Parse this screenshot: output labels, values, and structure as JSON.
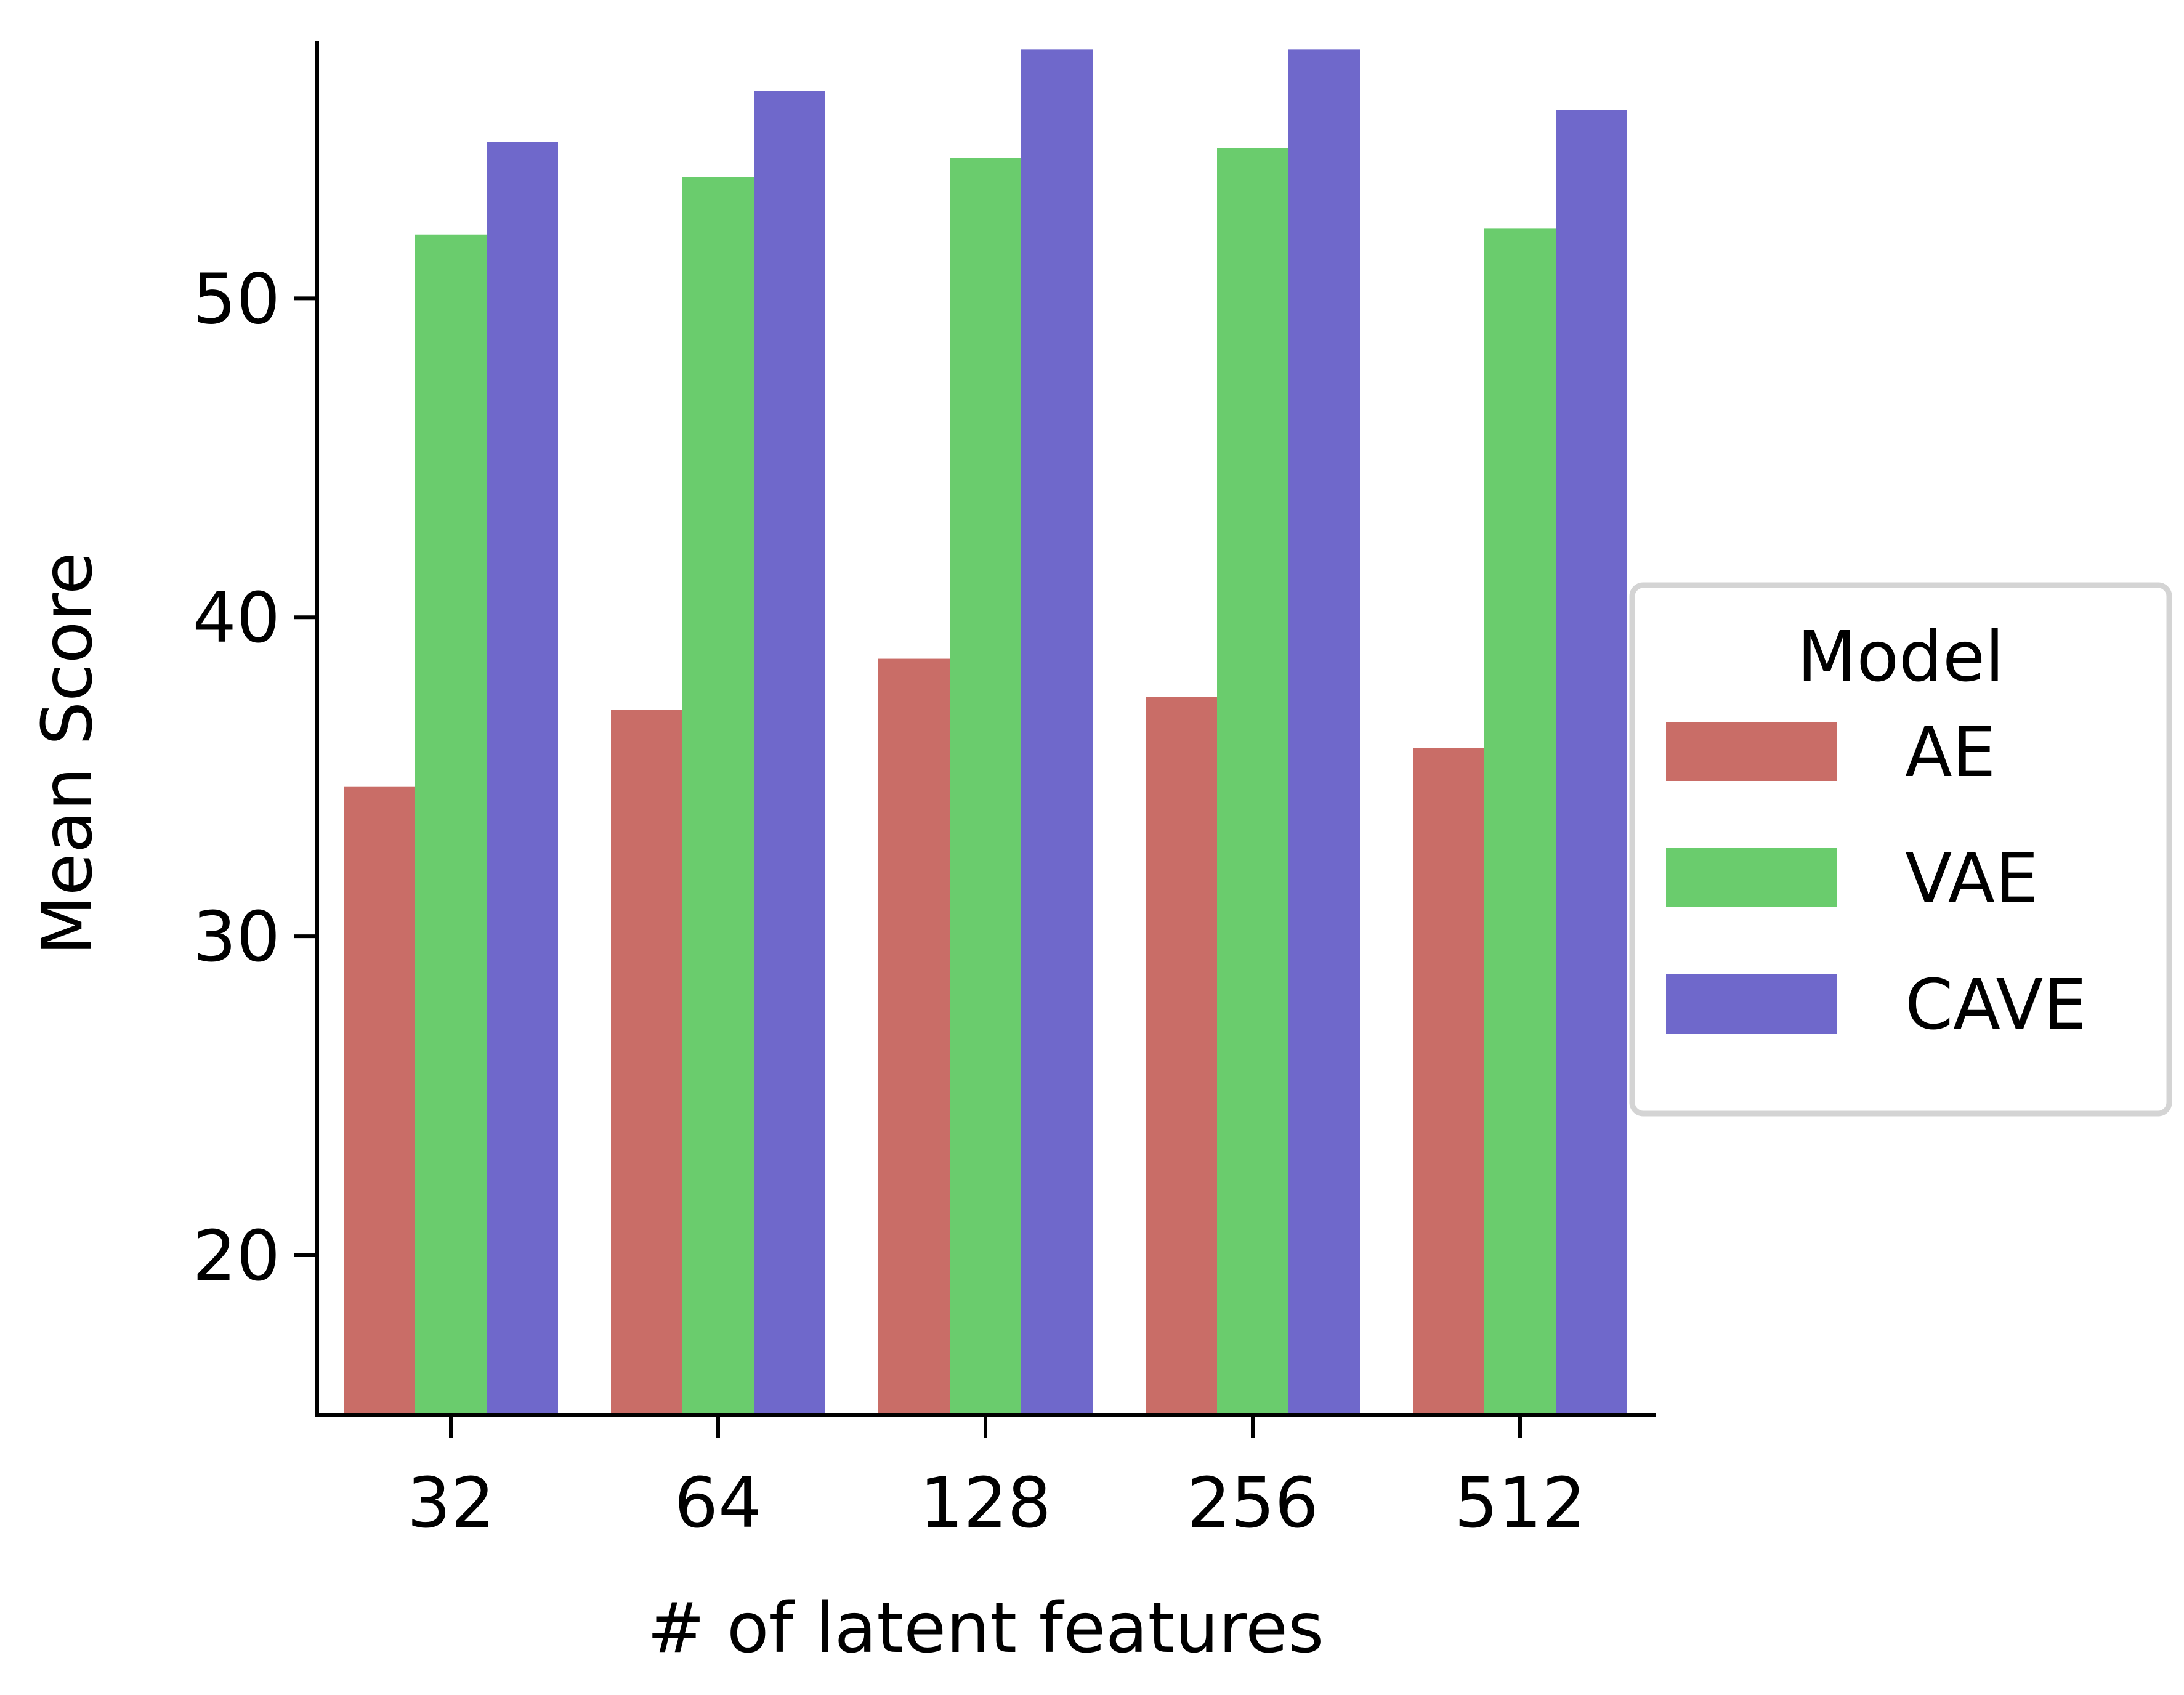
{
  "chart_data": {
    "type": "bar",
    "xlabel": "# of latent features",
    "ylabel": "Mean Score",
    "categories": [
      "32",
      "64",
      "128",
      "256",
      "512"
    ],
    "ylim": [
      15,
      58
    ],
    "yticks": [
      20,
      30,
      40,
      50
    ],
    "grid": false,
    "legend": {
      "title": "Model",
      "placement": "right"
    },
    "series": [
      {
        "name": "AE",
        "color": "#c96d67",
        "values": [
          34.7,
          37.1,
          38.7,
          37.5,
          35.9
        ]
      },
      {
        "name": "VAE",
        "color": "#6acc6d",
        "values": [
          52.0,
          53.8,
          54.4,
          54.7,
          52.2
        ]
      },
      {
        "name": "CAVE",
        "color": "#6f68cb",
        "values": [
          54.9,
          56.5,
          57.8,
          57.8,
          55.9
        ]
      }
    ]
  }
}
